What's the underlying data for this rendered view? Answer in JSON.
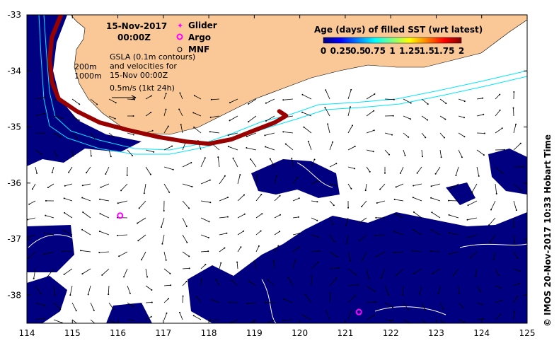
{
  "header": {
    "date": "15-Nov-2017",
    "time": "00:00Z"
  },
  "legend": {
    "items": [
      {
        "label": "Glider",
        "color": "#ff00ff",
        "symbol": "star"
      },
      {
        "label": "Argo",
        "color": "#ff00ff",
        "symbol": "ring"
      },
      {
        "label": "MNF",
        "color": "#000000",
        "symbol": "circle"
      }
    ],
    "depth_200": "200m",
    "depth_1000": "1000m",
    "gsla_line1": "GSLA (0.1m contours)",
    "gsla_line2": "and velocities for",
    "gsla_line3": "15-Nov 00:00Z",
    "scale_label": "0.5m/s (1kt 24h)"
  },
  "colorbar": {
    "title": "Age (days) of filled SST (wrt latest)",
    "tick_labels": [
      "0",
      "0.25",
      "0.5",
      "0.75",
      "1",
      "1.25",
      "1.5",
      "1.75",
      "2"
    ],
    "tick_values": [
      0,
      0.25,
      0.5,
      0.75,
      1,
      1.25,
      1.5,
      1.75,
      2
    ],
    "colors": [
      "#00007f",
      "#0000ff",
      "#0080ff",
      "#00ffff",
      "#80ff80",
      "#ffff00",
      "#ff8000",
      "#ff0000",
      "#7f0000"
    ]
  },
  "axes": {
    "lon_ticks": [
      "114",
      "115",
      "116",
      "117",
      "118",
      "119",
      "120",
      "121",
      "122",
      "123",
      "124",
      "125"
    ],
    "lat_ticks": [
      "-33",
      "-34",
      "-35",
      "-36",
      "-37",
      "-38"
    ],
    "lon_range": [
      114,
      125
    ],
    "lat_range": [
      -38.5,
      -33
    ]
  },
  "side_label": "© IMOS 20-Nov-2017 10:33 Hobart Time",
  "glider_track": [
    [
      114.75,
      -33.0
    ],
    [
      114.55,
      -33.4
    ],
    [
      114.5,
      -33.8
    ],
    [
      114.55,
      -34.2
    ],
    [
      114.7,
      -34.5
    ],
    [
      115.1,
      -34.72
    ],
    [
      115.6,
      -34.92
    ],
    [
      116.2,
      -35.05
    ],
    [
      116.9,
      -35.18
    ],
    [
      117.5,
      -35.26
    ],
    [
      118.0,
      -35.3
    ],
    [
      118.5,
      -35.22
    ],
    [
      119.0,
      -35.06
    ],
    [
      119.45,
      -34.92
    ],
    [
      119.7,
      -34.8
    ],
    [
      119.55,
      -34.72
    ]
  ],
  "argo_floats": [
    [
      116.05,
      -36.58
    ],
    [
      121.3,
      -38.3
    ]
  ],
  "colors": {
    "land": "#fac896",
    "cloud": "#000080",
    "track": "#990000",
    "contour": "#00e5ff"
  }
}
